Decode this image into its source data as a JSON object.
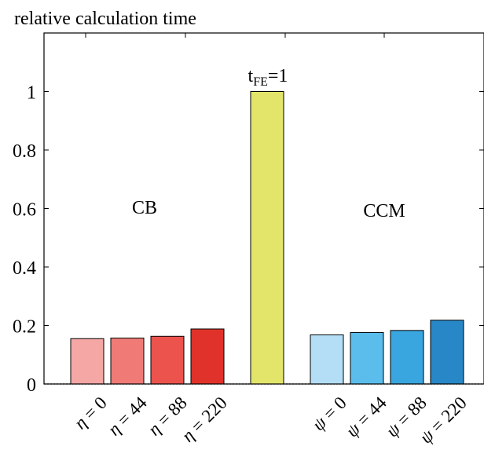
{
  "chart_data": {
    "type": "bar",
    "ylabel": "relative calculation time",
    "ylim": [
      0,
      1.2
    ],
    "yticks": [
      "0",
      "0.2",
      "0.4",
      "0.6",
      "0.8",
      "1"
    ],
    "ytick_values": [
      0,
      0.2,
      0.4,
      0.6,
      0.8,
      1.0
    ],
    "groups": [
      {
        "label": "CB",
        "categories": [
          {
            "sym": "η",
            "rest": " = 0"
          },
          {
            "sym": "η",
            "rest": " = 44"
          },
          {
            "sym": "η",
            "rest": " = 88"
          },
          {
            "sym": "η",
            "rest": " = 220"
          }
        ],
        "values": [
          0.155,
          0.157,
          0.163,
          0.188
        ],
        "colors": [
          "#f4a7a4",
          "#f07b76",
          "#ec534c",
          "#e0322a"
        ]
      },
      {
        "label": "",
        "categories": [
          {
            "sym": "",
            "rest": ""
          }
        ],
        "values": [
          1.0
        ],
        "colors": [
          "#e2e56a"
        ]
      },
      {
        "label": "CCM",
        "categories": [
          {
            "sym": "ψ",
            "rest": " = 0"
          },
          {
            "sym": "ψ",
            "rest": " = 44"
          },
          {
            "sym": "ψ",
            "rest": " = 88"
          },
          {
            "sym": "ψ",
            "rest": " = 220"
          }
        ],
        "values": [
          0.168,
          0.176,
          0.183,
          0.218
        ],
        "colors": [
          "#b3def6",
          "#5bbdeb",
          "#3aa6df",
          "#2887c6"
        ]
      }
    ],
    "annotation": {
      "text": "t",
      "sub": "FE",
      "rest": "=1"
    }
  }
}
